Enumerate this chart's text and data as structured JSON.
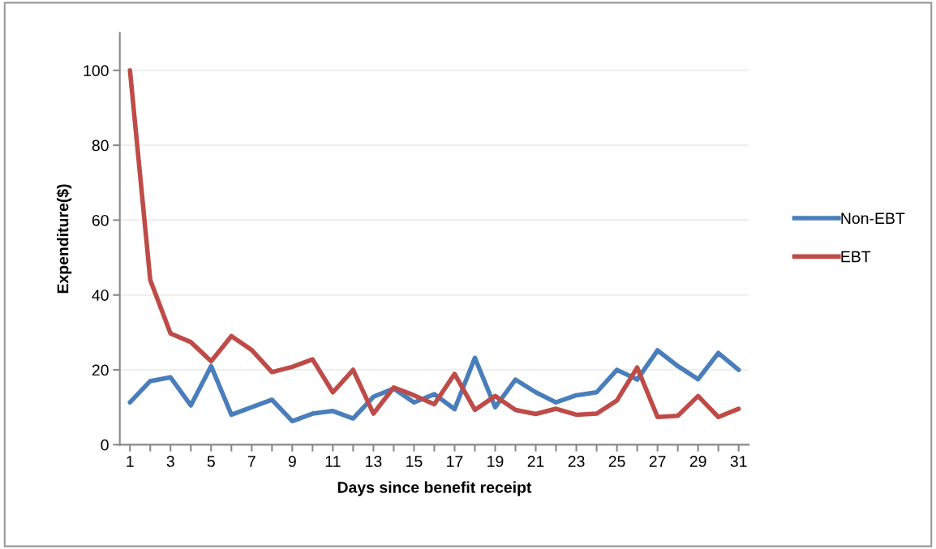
{
  "chart_data": {
    "type": "line",
    "xlabel": "Days since benefit receipt",
    "ylabel": "Expenditure($)",
    "x": [
      1,
      2,
      3,
      4,
      5,
      6,
      7,
      8,
      9,
      10,
      11,
      12,
      13,
      14,
      15,
      16,
      17,
      18,
      19,
      20,
      21,
      22,
      23,
      24,
      25,
      26,
      27,
      28,
      29,
      30,
      31
    ],
    "series": [
      {
        "name": "Non-EBT",
        "color": "#4a7ebb",
        "values": [
          11.3,
          17,
          18,
          10.5,
          21,
          8,
          10,
          12,
          6.3,
          8.3,
          9,
          7,
          12.8,
          15,
          11.3,
          13.5,
          9.5,
          23.2,
          10,
          17.4,
          14,
          11.3,
          13.2,
          14,
          20,
          17.4,
          25.2,
          21,
          17.5,
          24.5,
          20
        ]
      },
      {
        "name": "EBT",
        "color": "#be4b48",
        "values": [
          100,
          44,
          29.7,
          27.4,
          22.3,
          29,
          25.3,
          19.4,
          20.8,
          22.8,
          14,
          20,
          8.3,
          15.3,
          13.2,
          10.8,
          18.9,
          9.3,
          13,
          9.3,
          8.2,
          9.6,
          8,
          8.3,
          11.8,
          20.6,
          7.4,
          7.7,
          13,
          7.4,
          9.6
        ]
      }
    ],
    "xlim": [
      0.5,
      31.5
    ],
    "xticks": [
      1,
      {
        "value": 2,
        "label": null
      },
      3,
      {
        "value": 4,
        "label": null
      },
      5,
      {
        "value": 6,
        "label": null
      },
      7,
      {
        "value": 8,
        "label": null
      },
      9,
      {
        "value": 10,
        "label": null
      },
      11,
      {
        "value": 12,
        "label": null
      },
      13,
      {
        "value": 14,
        "label": null
      },
      15,
      {
        "value": 16,
        "label": null
      },
      17,
      {
        "value": 18,
        "label": null
      },
      19,
      {
        "value": 20,
        "label": null
      },
      21,
      {
        "value": 22,
        "label": null
      },
      23,
      {
        "value": 24,
        "label": null
      },
      25,
      {
        "value": 26,
        "label": null
      },
      27,
      {
        "value": 28,
        "label": null
      },
      29,
      {
        "value": 30,
        "label": null
      },
      31
    ],
    "ylim": [
      0,
      110
    ],
    "yticks": [
      0,
      20,
      40,
      60,
      80,
      100
    ],
    "grid": "y",
    "legend": "right",
    "marker": "none",
    "line_style": "solid"
  }
}
